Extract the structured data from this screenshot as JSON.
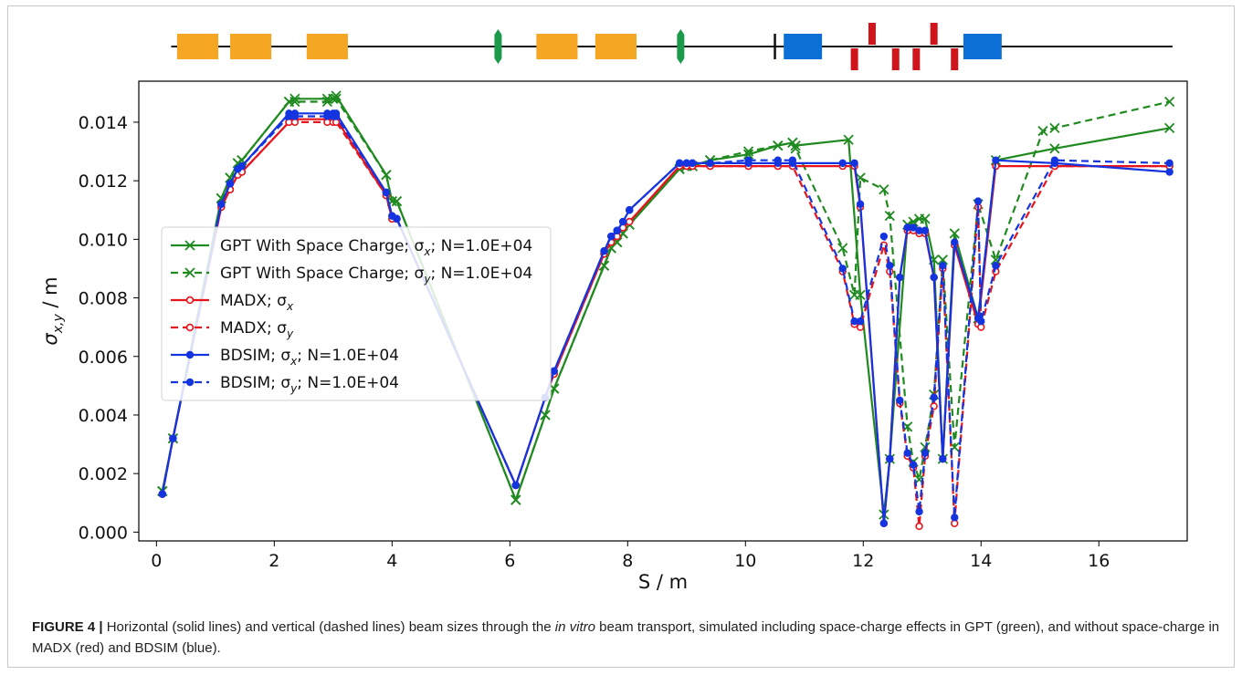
{
  "caption": {
    "label": "FIGURE 4 |",
    "text_before": " Horizontal (solid lines) and vertical (dashed lines) beam sizes through the ",
    "italic": "in vitro",
    "text_after": " beam transport, simulated including space-charge effects in GPT (green), and without space-charge in MADX (red) and BDSIM (blue)."
  },
  "colors": {
    "green": "#1f8a1f",
    "red": "#e8141c",
    "blue": "#1434e0",
    "dipole": "#f5a623",
    "solenoid": "#1a9a4a",
    "blue_block": "#0b6fd6",
    "red_kick": "#d0141c",
    "beamline": "#111111"
  },
  "beamline_schematic": {
    "elements": [
      {
        "type": "dipole",
        "s_start": 0.35,
        "s_end": 1.05
      },
      {
        "type": "dipole",
        "s_start": 1.25,
        "s_end": 1.95
      },
      {
        "type": "dipole",
        "s_start": 2.55,
        "s_end": 3.25
      },
      {
        "type": "solenoid",
        "s": 5.8
      },
      {
        "type": "dipole",
        "s_start": 6.45,
        "s_end": 7.15
      },
      {
        "type": "dipole",
        "s_start": 7.45,
        "s_end": 8.15
      },
      {
        "type": "solenoid",
        "s": 8.9
      },
      {
        "type": "marker",
        "s": 10.5
      },
      {
        "type": "blue_block",
        "s_start": 10.65,
        "s_end": 11.3
      },
      {
        "type": "quad_down",
        "s": 11.85
      },
      {
        "type": "quad_up",
        "s": 12.15
      },
      {
        "type": "quad_down",
        "s": 12.55
      },
      {
        "type": "quad_down",
        "s": 12.9
      },
      {
        "type": "quad_up",
        "s": 13.2
      },
      {
        "type": "quad_down",
        "s": 13.55
      },
      {
        "type": "blue_block",
        "s_start": 13.7,
        "s_end": 14.35
      }
    ]
  },
  "chart_data": {
    "type": "line",
    "xlabel": "S / m",
    "ylabel_main": "σ",
    "ylabel_sub": "x,y",
    "ylabel_unit": " / m",
    "xlim": [
      -0.3,
      17.5
    ],
    "ylim": [
      -0.0003,
      0.0154
    ],
    "xticks": [
      0,
      2,
      4,
      6,
      8,
      10,
      12,
      14,
      16
    ],
    "yticks": [
      0.0,
      0.002,
      0.004,
      0.006,
      0.008,
      0.01,
      0.012,
      0.014
    ],
    "ytick_labels": [
      "0.000",
      "0.002",
      "0.004",
      "0.006",
      "0.008",
      "0.010",
      "0.012",
      "0.014"
    ],
    "legend_position": "center-left",
    "series": [
      {
        "name_main": "GPT With Space Charge; σ",
        "name_sub": "x",
        "name_tail": "; N=1.0E+04",
        "color": "green",
        "dash": "solid",
        "marker": "x",
        "x": [
          0.1,
          0.28,
          1.1,
          1.25,
          1.38,
          1.45,
          2.25,
          2.35,
          2.9,
          3.0,
          3.05,
          3.9,
          4.0,
          4.08,
          6.1,
          6.6,
          6.75,
          7.6,
          7.72,
          7.82,
          7.92,
          8.03,
          8.88,
          9.0,
          9.1,
          9.4,
          10.05,
          10.55,
          10.8,
          10.85,
          11.75,
          11.95,
          12.35,
          12.45,
          12.75,
          12.85,
          12.95,
          13.05,
          13.2,
          13.35,
          13.55,
          13.95,
          14.25,
          15.25,
          17.2
        ],
        "y": [
          0.0014,
          0.0032,
          0.0114,
          0.0121,
          0.0126,
          0.0127,
          0.0147,
          0.0148,
          0.0148,
          0.0148,
          0.0149,
          0.0122,
          0.0113,
          0.0113,
          0.0011,
          0.004,
          0.0049,
          0.0091,
          0.0097,
          0.0099,
          0.0102,
          0.0105,
          0.0124,
          0.0125,
          0.0125,
          0.0127,
          0.0129,
          0.0132,
          0.0133,
          0.0132,
          0.0134,
          0.0081,
          0.0006,
          0.0025,
          0.0105,
          0.0106,
          0.0107,
          0.0107,
          0.0093,
          0.0025,
          0.0102,
          0.0073,
          0.0127,
          0.0131,
          0.0138
        ]
      },
      {
        "name_main": "GPT With Space Charge; σ",
        "name_sub": "y",
        "name_tail": "; N=1.0E+04",
        "color": "green",
        "dash": "dashed",
        "marker": "x",
        "x": [
          0.1,
          0.28,
          1.1,
          1.25,
          1.38,
          1.45,
          2.25,
          2.35,
          2.9,
          3.0,
          3.05,
          3.9,
          4.0,
          4.08,
          6.1,
          6.6,
          6.75,
          7.6,
          7.72,
          7.82,
          7.92,
          8.03,
          8.88,
          9.0,
          9.1,
          9.4,
          10.05,
          10.55,
          10.8,
          10.85,
          11.65,
          11.85,
          11.95,
          12.35,
          12.45,
          12.75,
          12.85,
          12.95,
          13.05,
          13.2,
          13.35,
          13.55,
          13.95,
          14.25,
          15.05,
          15.25,
          17.2
        ],
        "y": [
          0.0014,
          0.0032,
          0.0114,
          0.0121,
          0.0126,
          0.0127,
          0.0147,
          0.0147,
          0.0147,
          0.0148,
          0.0148,
          0.0122,
          0.0113,
          0.0113,
          0.0011,
          0.004,
          0.0049,
          0.0091,
          0.0097,
          0.0099,
          0.0102,
          0.0105,
          0.0124,
          0.0125,
          0.0125,
          0.0127,
          0.013,
          0.0132,
          0.0133,
          0.0131,
          0.0097,
          0.0081,
          0.0121,
          0.0117,
          0.0108,
          0.0036,
          0.0024,
          0.0018,
          0.0029,
          0.0047,
          0.0093,
          0.0029,
          0.0112,
          0.0093,
          0.0137,
          0.0138,
          0.0147
        ]
      },
      {
        "name_main": "MADX; σ",
        "name_sub": "x",
        "name_tail": "",
        "color": "red",
        "dash": "solid",
        "marker": "o",
        "x": [
          0.1,
          0.28,
          1.1,
          1.25,
          1.38,
          1.45,
          2.25,
          2.35,
          2.9,
          3.0,
          3.05,
          3.9,
          4.0,
          4.08,
          6.1,
          6.6,
          6.75,
          7.6,
          7.72,
          7.82,
          7.92,
          8.03,
          8.88,
          9.0,
          9.1,
          9.4,
          10.05,
          10.55,
          10.8,
          11.65,
          11.85,
          11.95,
          12.35,
          12.45,
          12.62,
          12.75,
          12.85,
          12.95,
          13.05,
          13.2,
          13.35,
          13.55,
          13.95,
          14.25,
          15.25,
          17.2
        ],
        "y": [
          0.0013,
          0.0032,
          0.0111,
          0.0117,
          0.0122,
          0.0123,
          0.014,
          0.0141,
          0.0141,
          0.0141,
          0.0141,
          0.0115,
          0.0107,
          0.0107,
          0.0016,
          0.0046,
          0.0054,
          0.0095,
          0.0099,
          0.0101,
          0.0104,
          0.0106,
          0.0125,
          0.0125,
          0.0125,
          0.0125,
          0.0125,
          0.0125,
          0.0125,
          0.0125,
          0.0125,
          0.0111,
          0.0003,
          0.0025,
          0.0087,
          0.0103,
          0.0103,
          0.0102,
          0.0102,
          0.0087,
          0.0025,
          0.0098,
          0.0071,
          0.0125,
          0.0125,
          0.0125
        ]
      },
      {
        "name_main": "MADX; σ",
        "name_sub": "y",
        "name_tail": "",
        "color": "red",
        "dash": "dashed",
        "marker": "o",
        "x": [
          0.1,
          0.28,
          1.1,
          1.25,
          1.38,
          1.45,
          2.25,
          2.35,
          2.9,
          3.0,
          3.05,
          3.9,
          4.0,
          4.08,
          6.1,
          6.6,
          6.75,
          7.6,
          7.72,
          7.82,
          7.92,
          8.03,
          8.88,
          9.0,
          9.1,
          9.4,
          10.05,
          10.55,
          10.8,
          11.65,
          11.85,
          11.95,
          12.35,
          12.45,
          12.62,
          12.75,
          12.85,
          12.95,
          13.05,
          13.2,
          13.35,
          13.55,
          13.95,
          14.0,
          14.25,
          15.25,
          17.2
        ],
        "y": [
          0.0013,
          0.0032,
          0.0111,
          0.0117,
          0.0122,
          0.0123,
          0.014,
          0.014,
          0.014,
          0.014,
          0.014,
          0.0115,
          0.0107,
          0.0107,
          0.0016,
          0.0046,
          0.0054,
          0.0095,
          0.0099,
          0.0101,
          0.0104,
          0.0106,
          0.0125,
          0.0125,
          0.0125,
          0.0125,
          0.0125,
          0.0125,
          0.0125,
          0.0089,
          0.0071,
          0.007,
          0.0098,
          0.0089,
          0.0044,
          0.0026,
          0.0022,
          0.0002,
          0.0026,
          0.0043,
          0.009,
          0.0003,
          0.0111,
          0.007,
          0.0089,
          0.0125,
          0.0125
        ]
      },
      {
        "name_main": "BDSIM; σ",
        "name_sub": "x",
        "name_tail": "; N=1.0E+04",
        "color": "blue",
        "dash": "solid",
        "marker": "o",
        "x": [
          0.1,
          0.28,
          1.1,
          1.25,
          1.38,
          1.45,
          2.25,
          2.35,
          2.9,
          3.0,
          3.05,
          3.9,
          4.0,
          4.08,
          6.1,
          6.6,
          6.75,
          7.6,
          7.72,
          7.82,
          7.92,
          8.03,
          8.88,
          9.0,
          9.1,
          9.4,
          10.05,
          10.55,
          10.8,
          11.65,
          11.85,
          11.95,
          12.35,
          12.45,
          12.62,
          12.75,
          12.85,
          12.95,
          13.05,
          13.2,
          13.35,
          13.55,
          13.95,
          14.25,
          15.25,
          17.2
        ],
        "y": [
          0.0013,
          0.0032,
          0.0112,
          0.0119,
          0.0124,
          0.0125,
          0.0143,
          0.0143,
          0.0143,
          0.0143,
          0.0143,
          0.0116,
          0.0108,
          0.0107,
          0.0016,
          0.0046,
          0.0055,
          0.0096,
          0.0101,
          0.0103,
          0.0106,
          0.011,
          0.0126,
          0.0126,
          0.0126,
          0.0126,
          0.0126,
          0.0126,
          0.0126,
          0.0126,
          0.0126,
          0.0112,
          0.0003,
          0.0025,
          0.0087,
          0.0104,
          0.0104,
          0.0103,
          0.0103,
          0.0087,
          0.0025,
          0.0099,
          0.0073,
          0.0127,
          0.0126,
          0.0123
        ]
      },
      {
        "name_main": "BDSIM; σ",
        "name_sub": "y",
        "name_tail": "; N=1.0E+04",
        "color": "blue",
        "dash": "dashed",
        "marker": "o",
        "x": [
          0.1,
          0.28,
          1.1,
          1.25,
          1.38,
          1.45,
          2.25,
          2.35,
          2.9,
          3.0,
          3.05,
          3.9,
          4.0,
          4.08,
          6.1,
          6.6,
          6.75,
          7.6,
          7.72,
          7.82,
          7.92,
          8.03,
          8.88,
          9.0,
          9.1,
          9.4,
          10.05,
          10.55,
          10.8,
          11.65,
          11.85,
          11.95,
          12.35,
          12.45,
          12.62,
          12.75,
          12.85,
          12.95,
          13.05,
          13.2,
          13.35,
          13.55,
          13.95,
          14.0,
          14.25,
          15.25,
          17.2
        ],
        "y": [
          0.0013,
          0.0032,
          0.0112,
          0.0119,
          0.0124,
          0.0125,
          0.0142,
          0.0142,
          0.0142,
          0.0142,
          0.0142,
          0.0116,
          0.0108,
          0.0107,
          0.0016,
          0.0046,
          0.0055,
          0.0096,
          0.0101,
          0.0103,
          0.0106,
          0.011,
          0.0126,
          0.0126,
          0.0126,
          0.0126,
          0.0127,
          0.0127,
          0.0127,
          0.009,
          0.0072,
          0.0072,
          0.0101,
          0.0091,
          0.0045,
          0.0027,
          0.0023,
          0.0007,
          0.0027,
          0.0046,
          0.0091,
          0.0005,
          0.0113,
          0.0072,
          0.0091,
          0.0127,
          0.0126
        ]
      }
    ]
  }
}
